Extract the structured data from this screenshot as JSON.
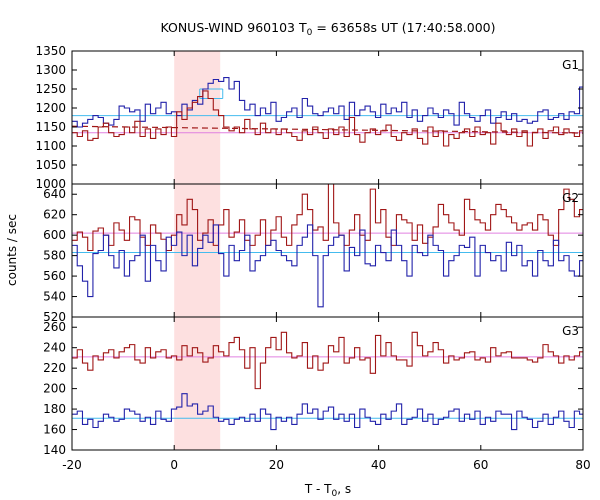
{
  "chart_data": {
    "type": "line",
    "render": "step",
    "title": {
      "prefix": "KONUS-WIND 960103 T",
      "sub": "0",
      "suffix": " = 63658s UT (17:40:58.000)"
    },
    "xlabel": {
      "prefix": "T - T",
      "sub": "0",
      "suffix": ", s"
    },
    "ylabel": "counts / sec",
    "xlim": [
      -20,
      80
    ],
    "xticks": [
      -20,
      0,
      20,
      40,
      60,
      80
    ],
    "highlight": {
      "x_range": [
        0,
        9
      ],
      "color": "#fde0e0"
    },
    "colors": {
      "red_series": "#a01616",
      "blue_series": "#2222aa",
      "red_mean": "#e080e0",
      "blue_mean": "#44bbee",
      "fit": "#a01616",
      "box": "#44bbee"
    },
    "panels": [
      {
        "label": "G1",
        "ylim": [
          1000,
          1350
        ],
        "yticks": [
          1000,
          1050,
          1100,
          1150,
          1200,
          1250,
          1300,
          1350
        ],
        "bin_start": -20,
        "bin_width": 1.024,
        "series": [
          {
            "color_key": "blue_series",
            "values": [
              1165,
              1150,
              1160,
              1170,
              1180,
              1175,
              1160,
              1155,
              1170,
              1205,
              1200,
              1190,
              1195,
              1165,
              1210,
              1185,
              1200,
              1215,
              1185,
              1190,
              1180,
              1210,
              1195,
              1220,
              1210,
              1250,
              1265,
              1275,
              1270,
              1280,
              1250,
              1270,
              1220,
              1195,
              1210,
              1180,
              1200,
              1185,
              1215,
              1165,
              1175,
              1190,
              1200,
              1175,
              1225,
              1205,
              1185,
              1180,
              1190,
              1200,
              1185,
              1205,
              1170,
              1215,
              1180,
              1195,
              1205,
              1190,
              1175,
              1210,
              1185,
              1200,
              1190,
              1215,
              1175,
              1195,
              1165,
              1180,
              1200,
              1185,
              1175,
              1195,
              1185,
              1155,
              1215,
              1185,
              1175,
              1165,
              1180,
              1195,
              1160,
              1175,
              1190,
              1170,
              1185,
              1165,
              1170,
              1160,
              1165,
              1190,
              1195,
              1170,
              1175,
              1185,
              1170,
              1190,
              1185,
              1255,
              1160,
              1185
            ]
          },
          {
            "color_key": "red_series",
            "values": [
              1135,
              1125,
              1140,
              1115,
              1120,
              1150,
              1160,
              1135,
              1125,
              1130,
              1150,
              1135,
              1165,
              1125,
              1145,
              1120,
              1145,
              1130,
              1150,
              1125,
              1190,
              1170,
              1200,
              1215,
              1230,
              1245,
              1225,
              1195,
              1180,
              1150,
              1140,
              1150,
              1135,
              1170,
              1145,
              1130,
              1160,
              1135,
              1145,
              1130,
              1145,
              1135,
              1125,
              1115,
              1140,
              1130,
              1150,
              1135,
              1120,
              1145,
              1130,
              1150,
              1125,
              1175,
              1130,
              1110,
              1135,
              1145,
              1130,
              1140,
              1155,
              1125,
              1115,
              1135,
              1130,
              1145,
              1120,
              1105,
              1150,
              1125,
              1140,
              1100,
              1130,
              1120,
              1135,
              1145,
              1125,
              1150,
              1130,
              1135,
              1105,
              1160,
              1140,
              1130,
              1145,
              1125,
              1140,
              1100,
              1135,
              1145,
              1120,
              1140,
              1150,
              1130,
              1145,
              1135,
              1125,
              1140,
              1150,
              1060
            ]
          }
        ],
        "means": [
          {
            "color_key": "blue_mean",
            "value": 1180
          },
          {
            "color_key": "red_mean",
            "value": 1135
          }
        ],
        "fit": {
          "color_key": "fit",
          "x": [
            -20,
            80
          ],
          "y": [
            1152,
            1134
          ]
        },
        "boxes": [
          {
            "color_key": "box",
            "x_range": [
              5,
              9.5
            ],
            "value": 1250
          },
          {
            "color_key": "box",
            "x_range": [
              5,
              9.5
            ],
            "value": 1225
          }
        ]
      },
      {
        "label": "G2",
        "ylim": [
          520,
          650
        ],
        "yticks": [
          520,
          540,
          560,
          580,
          600,
          620,
          640
        ],
        "bin_start": -20,
        "bin_width": 1.024,
        "series": [
          {
            "color_key": "red_series",
            "values": [
              595,
              603,
              598,
              585,
              604,
              607,
              600,
              590,
              612,
              605,
              595,
              618,
              615,
              598,
              590,
              610,
              602,
              596,
              585,
              600,
              620,
              610,
              635,
              625,
              595,
              602,
              615,
              590,
              610,
              625,
              598,
              603,
              615,
              595,
              590,
              600,
              615,
              590,
              605,
              618,
              598,
              590,
              610,
              620,
              640,
              625,
              605,
              608,
              595,
              650,
              612,
              600,
              590,
              605,
              620,
              600,
              595,
              645,
              612,
              625,
              598,
              590,
              620,
              615,
              612,
              595,
              610,
              592,
              598,
              608,
              630,
              620,
              612,
              605,
              600,
              635,
              625,
              615,
              612,
              605,
              620,
              630,
              625,
              618,
              612,
              605,
              610,
              612,
              605,
              620,
              615,
              600,
              590,
              625,
              645,
              635,
              618,
              625,
              605,
              590
            ]
          },
          {
            "color_key": "red_series_dummy_skip",
            "values": []
          },
          {
            "color_key": "blue_series",
            "values": [
              590,
              570,
              555,
              540,
              582,
              585,
              600,
              580,
              568,
              585,
              560,
              575,
              580,
              600,
              555,
              590,
              575,
              565,
              598,
              590,
              603,
              580,
              600,
              570,
              587,
              600,
              593,
              610,
              582,
              560,
              590,
              575,
              585,
              600,
              565,
              575,
              580,
              590,
              595,
              585,
              580,
              575,
              570,
              590,
              598,
              610,
              580,
              530,
              580,
              590,
              598,
              600,
              565,
              588,
              580,
              605,
              572,
              570,
              590,
              583,
              575,
              605,
              590,
              575,
              560,
              590,
              583,
              580,
              600,
              590,
              585,
              560,
              575,
              580,
              590,
              588,
              598,
              560,
              590,
              583,
              575,
              580,
              565,
              593,
              580,
              590,
              570,
              575,
              560,
              585,
              575,
              570,
              595,
              575,
              580,
              565,
              560,
              575,
              570,
              600
            ]
          }
        ],
        "means": [
          {
            "color_key": "red_mean",
            "value": 602
          },
          {
            "color_key": "blue_mean",
            "value": 583
          }
        ]
      },
      {
        "label": "G3",
        "ylim": [
          140,
          270
        ],
        "yticks": [
          140,
          160,
          180,
          200,
          220,
          240,
          260
        ],
        "bin_start": -20,
        "bin_width": 1.024,
        "series": [
          {
            "color_key": "red_series",
            "values": [
              230,
              238,
              225,
              218,
              232,
              228,
              235,
              238,
              230,
              236,
              240,
              243,
              228,
              225,
              240,
              230,
              236,
              238,
              230,
              232,
              228,
              242,
              232,
              240,
              235,
              226,
              230,
              242,
              236,
              232,
              245,
              250,
              238,
              220,
              240,
              200,
              225,
              240,
              250,
              238,
              255,
              235,
              230,
              232,
              245,
              220,
              232,
              218,
              225,
              242,
              236,
              250,
              225,
              230,
              240,
              228,
              230,
              215,
              252,
              232,
              245,
              232,
              228,
              228,
              222,
              255,
              242,
              232,
              236,
              245,
              238,
              225,
              232,
              228,
              230,
              235,
              236,
              228,
              230,
              226,
              240,
              232,
              235,
              236,
              230,
              230,
              230,
              228,
              226,
              230,
              243,
              236,
              232,
              225,
              232,
              228,
              232,
              236,
              230,
              235
            ]
          },
          {
            "color_key": "blue_series",
            "values": [
              175,
              178,
              165,
              170,
              162,
              168,
              175,
              172,
              168,
              170,
              180,
              178,
              175,
              168,
              172,
              165,
              178,
              170,
              168,
              180,
              182,
              195,
              183,
              185,
              175,
              178,
              183,
              172,
              168,
              170,
              165,
              170,
              172,
              168,
              175,
              168,
              180,
              175,
              160,
              172,
              168,
              172,
              165,
              175,
              185,
              176,
              180,
              170,
              178,
              182,
              170,
              175,
              168,
              175,
              162,
              180,
              172,
              168,
              165,
              175,
              170,
              178,
              185,
              165,
              170,
              172,
              180,
              168,
              175,
              165,
              170,
              172,
              178,
              180,
              168,
              175,
              170,
              178,
              165,
              172,
              168,
              178,
              175,
              175,
              160,
              178,
              172,
              170,
              162,
              168,
              175,
              165,
              172,
              178,
              168,
              162,
              178,
              175,
              165,
              160
            ]
          }
        ],
        "means": [
          {
            "color_key": "red_mean",
            "value": 231
          },
          {
            "color_key": "blue_mean",
            "value": 171
          }
        ]
      }
    ]
  }
}
